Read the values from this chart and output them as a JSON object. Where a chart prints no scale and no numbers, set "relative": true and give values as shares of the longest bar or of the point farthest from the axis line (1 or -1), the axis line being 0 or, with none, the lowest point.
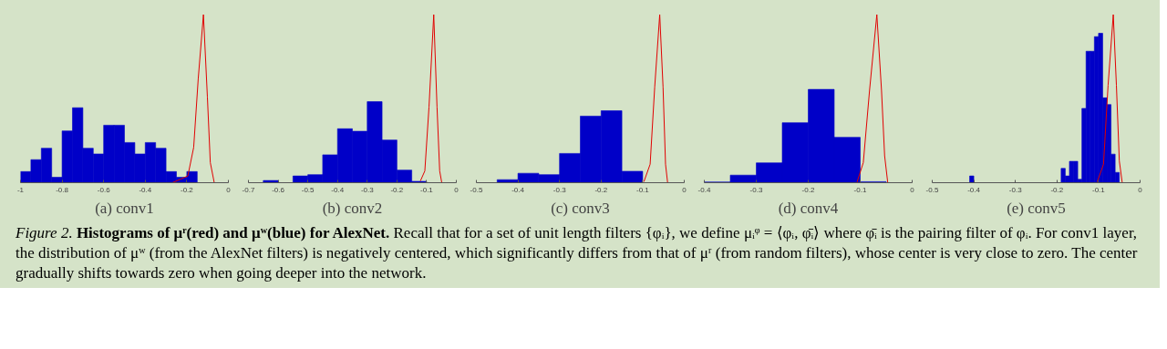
{
  "chart_data": [
    {
      "type": "histogram",
      "xlabel": "(a) conv1",
      "relative": true,
      "color": "#0000c8",
      "xlim": [
        -1,
        0
      ],
      "xticks": [
        -1,
        -0.8,
        -0.6,
        -0.4,
        -0.2,
        0
      ],
      "bins": [
        -1,
        -0.95,
        -0.9,
        -0.85,
        -0.8,
        -0.75,
        -0.7,
        -0.65,
        -0.6,
        -0.55,
        -0.5,
        -0.45,
        -0.4,
        -0.35,
        -0.3,
        -0.25,
        -0.2,
        -0.15
      ],
      "values": [
        0.066,
        0.137,
        0.205,
        0.032,
        0.308,
        0.446,
        0.205,
        0.171,
        0.342,
        0.342,
        0.239,
        0.171,
        0.239,
        0.205,
        0.066,
        0.032,
        0.066
      ],
      "series": [
        {
          "type": "line",
          "color": "#e00000",
          "x": [
            -0.27,
            -0.195,
            -0.167,
            -0.145,
            -0.12,
            -0.101,
            -0.087,
            -0.068
          ],
          "values": [
            0,
            0.04,
            0.21,
            0.62,
            1,
            0.51,
            0.12,
            0
          ]
        }
      ],
      "annotations": [
        "Figure 2.",
        "Histograms of μʳ(red) and μʷ(blue) for AlexNet.",
        "Recall that for a set of unit length filters {φᵢ}, we define μᵢᵠ = ⟨φᵢ, φ̄ᵢ⟩ where φ̄ᵢ is the pairing filter of φᵢ. For conv1 layer, the distribution of μʷ (from the AlexNet filters) is negatively centered, which significantly differs from that of μʳ (from random filters), whose center is very close to zero. The center gradually shifts towards zero when going deeper into the network."
      ]
    },
    {
      "type": "histogram",
      "xlabel": "(b) conv2",
      "relative": true,
      "color": "#0000c8",
      "xlim": [
        -0.7,
        0
      ],
      "xticks": [
        -0.7,
        -0.6,
        -0.5,
        -0.4,
        -0.3,
        -0.2,
        -0.1,
        0
      ],
      "bins": [
        -0.65,
        -0.6,
        -0.55,
        -0.5,
        -0.45,
        -0.4,
        -0.35,
        -0.3,
        -0.25,
        -0.2,
        -0.15,
        -0.1
      ],
      "values": [
        0.013,
        0,
        0.04,
        0.048,
        0.166,
        0.321,
        0.306,
        0.482,
        0.254,
        0.075,
        0.008
      ],
      "series": [
        {
          "type": "line",
          "color": "#e00000",
          "x": [
            -0.121,
            -0.106,
            -0.092,
            -0.076,
            -0.065,
            -0.056,
            -0.049
          ],
          "values": [
            0.01,
            0.07,
            0.45,
            1,
            0.45,
            0.07,
            0
          ]
        }
      ]
    },
    {
      "type": "histogram",
      "xlabel": "(c) conv3",
      "relative": true,
      "color": "#0000c8",
      "xlim": [
        -0.5,
        0
      ],
      "xticks": [
        -0.5,
        -0.4,
        -0.3,
        -0.2,
        -0.1,
        0
      ],
      "bins": [
        -0.45,
        -0.4,
        -0.35,
        -0.3,
        -0.25,
        -0.2,
        -0.15,
        -0.1
      ],
      "values": [
        0.018,
        0.056,
        0.048,
        0.174,
        0.396,
        0.428,
        0.068
      ],
      "series": [
        {
          "type": "line",
          "color": "#e00000",
          "x": [
            -0.097,
            -0.082,
            -0.071,
            -0.059,
            -0.051,
            -0.045,
            -0.04
          ],
          "values": [
            0.006,
            0.11,
            0.57,
            1,
            0.57,
            0.11,
            0
          ]
        }
      ]
    },
    {
      "type": "histogram",
      "xlabel": "(d) conv4",
      "relative": true,
      "color": "#0000c8",
      "xlim": [
        -0.4,
        0
      ],
      "xticks": [
        -0.4,
        -0.3,
        -0.2,
        -0.1,
        0
      ],
      "bins": [
        -0.4,
        -0.35,
        -0.3,
        -0.25,
        -0.2,
        -0.15,
        -0.1,
        -0.05
      ],
      "values": [
        0.004,
        0.045,
        0.118,
        0.357,
        0.555,
        0.27,
        0.006
      ],
      "series": [
        {
          "type": "line",
          "color": "#e00000",
          "x": [
            -0.106,
            -0.094,
            -0.082,
            -0.068,
            -0.059,
            -0.053,
            -0.047
          ],
          "values": [
            0.004,
            0.12,
            0.55,
            1,
            0.55,
            0.16,
            0
          ]
        }
      ]
    },
    {
      "type": "histogram",
      "xlabel": "(e) conv5",
      "relative": true,
      "color": "#0000c8",
      "xlim": [
        -0.5,
        0
      ],
      "xticks": [
        -0.5,
        -0.4,
        -0.3,
        -0.2,
        -0.1,
        0
      ],
      "bins": [
        -0.41,
        -0.4,
        -0.39,
        -0.38,
        -0.37,
        -0.36,
        -0.35,
        -0.34,
        -0.33,
        -0.32,
        -0.31,
        -0.3,
        -0.29,
        -0.28,
        -0.27,
        -0.26,
        -0.25,
        -0.24,
        -0.23,
        -0.22,
        -0.21,
        -0.2,
        -0.19,
        -0.18,
        -0.17,
        -0.16,
        -0.15,
        -0.14,
        -0.13,
        -0.12,
        -0.11,
        -0.1,
        -0.09,
        -0.08,
        -0.07,
        -0.06,
        -0.05
      ],
      "values": [
        0.04,
        0,
        0,
        0,
        0,
        0,
        0,
        0,
        0,
        0,
        0,
        0,
        0,
        0,
        0,
        0,
        0,
        0,
        0,
        0,
        0,
        0,
        0.085,
        0.04,
        0.127,
        0.127,
        0.02,
        0.442,
        0.782,
        0.782,
        0.869,
        0.889,
        0.505,
        0.465,
        0.17,
        0.061
      ],
      "series": [
        {
          "type": "line",
          "color": "#e00000",
          "x": [
            -0.103,
            -0.088,
            -0.077,
            -0.0645,
            -0.057,
            -0.05,
            -0.043
          ],
          "values": [
            0.006,
            0.11,
            0.58,
            1,
            0.58,
            0.13,
            0
          ]
        }
      ]
    }
  ]
}
